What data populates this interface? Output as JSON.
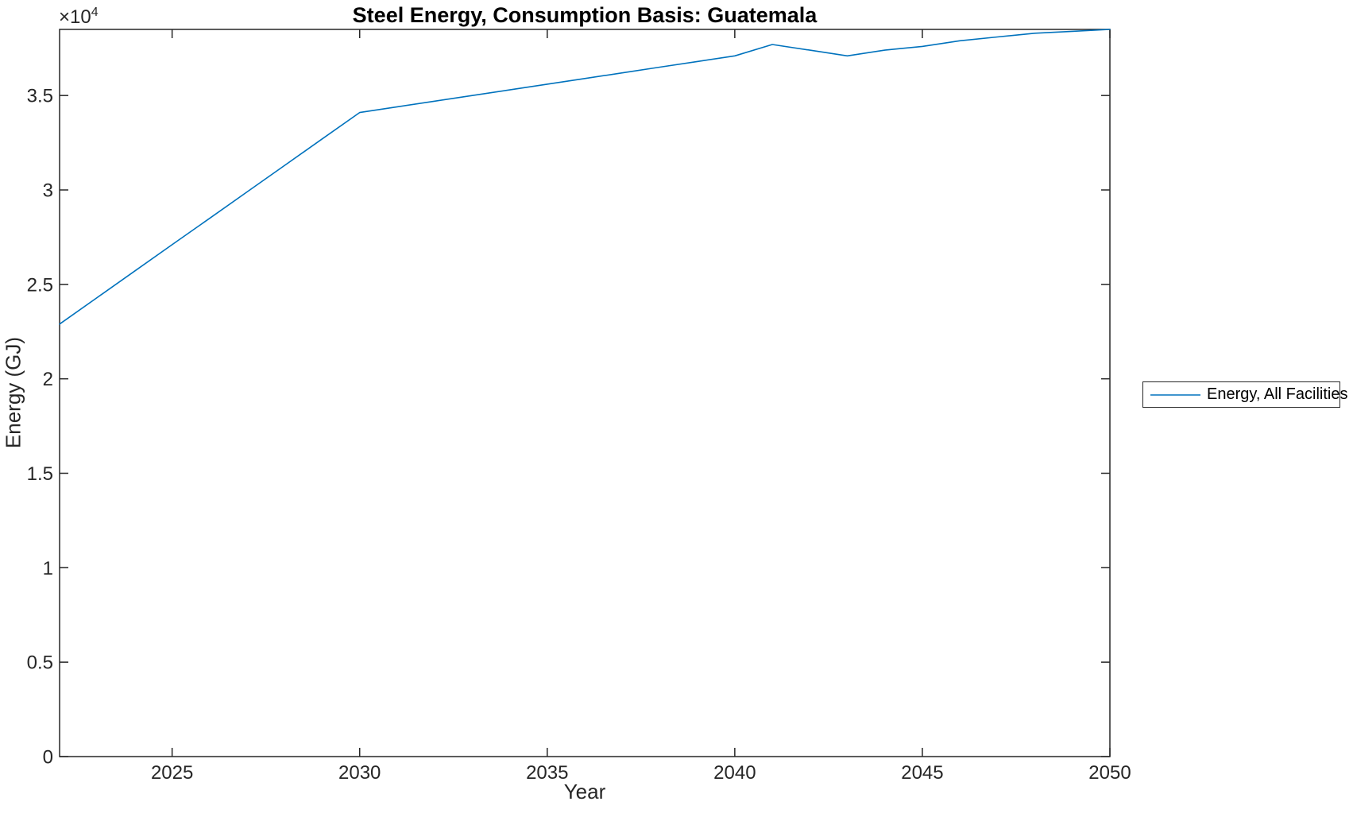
{
  "chart_data": {
    "type": "line",
    "title": "Steel Energy, Consumption Basis: Guatemala",
    "xlabel": "Year",
    "ylabel": "Energy (GJ)",
    "y_exponent": {
      "base": "×10",
      "power": "4"
    },
    "xlim": [
      2022,
      2050
    ],
    "ylim": [
      0,
      38500
    ],
    "grid": false,
    "x_ticks": {
      "values": [
        2025,
        2030,
        2035,
        2040,
        2045,
        2050
      ],
      "labels": [
        "2025",
        "2030",
        "2035",
        "2040",
        "2045",
        "2050"
      ]
    },
    "y_ticks": {
      "values": [
        0,
        5000,
        10000,
        15000,
        20000,
        25000,
        30000,
        35000
      ],
      "labels": [
        "0",
        "0.5",
        "1",
        "1.5",
        "2",
        "2.5",
        "3",
        "3.5"
      ]
    },
    "legend": {
      "position": "right-outside",
      "entries": [
        {
          "label": "Energy, All Facilities",
          "color": "#0072BD"
        }
      ]
    },
    "series": [
      {
        "name": "Energy, All Facilities",
        "color": "#0072BD",
        "x": [
          2022,
          2023,
          2024,
          2025,
          2026,
          2027,
          2028,
          2029,
          2030,
          2031,
          2032,
          2033,
          2034,
          2035,
          2036,
          2037,
          2038,
          2039,
          2040,
          2041,
          2042,
          2043,
          2044,
          2045,
          2046,
          2047,
          2048,
          2049,
          2050
        ],
        "y": [
          22900,
          24300,
          25700,
          27100,
          28500,
          29900,
          31300,
          32700,
          34100,
          34400,
          34700,
          35000,
          35300,
          35600,
          35900,
          36200,
          36500,
          36800,
          37100,
          37700,
          37400,
          37100,
          37400,
          37600,
          37900,
          38100,
          38300,
          38400,
          38500
        ]
      }
    ]
  },
  "colors": {
    "line": "#0072BD",
    "axis": "#262626",
    "title_text": "#000000"
  }
}
